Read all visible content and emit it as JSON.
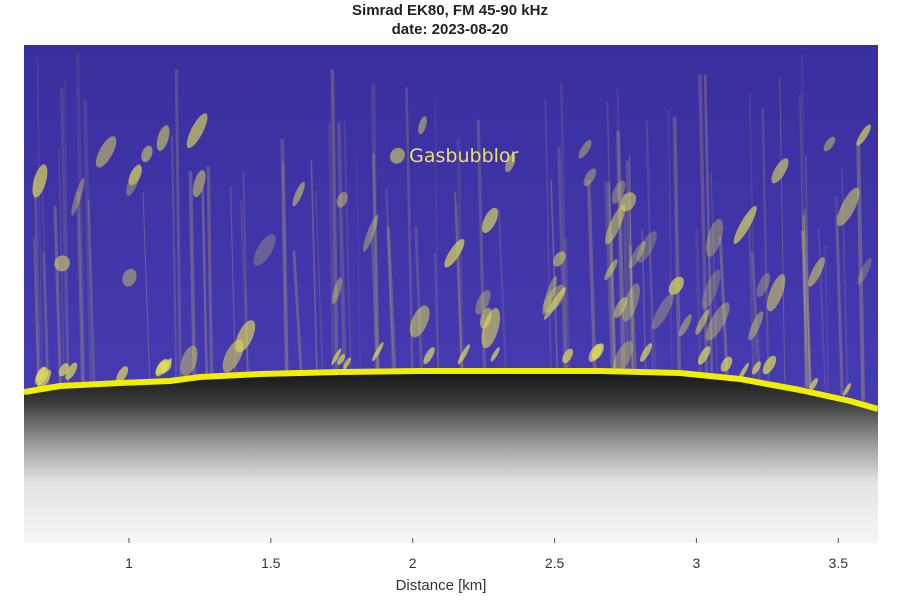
{
  "chart_data": {
    "type": "heatmap",
    "title": "Simrad EK80, FM 45-90 kHz",
    "subtitle": "date: 2023-08-20",
    "xlabel": "Distance [km]",
    "ylabel": "",
    "xlim": [
      0.63,
      3.64
    ],
    "x_ticks": [
      1,
      1.5,
      2,
      2.5,
      3,
      3.5
    ],
    "x_tick_labels": [
      "1",
      "1.5",
      "2",
      "2.5",
      "3",
      "3.5"
    ],
    "grid": false,
    "legend": "none",
    "annotations": [
      {
        "text": "Gasbubblor",
        "x": 2.18
      }
    ],
    "seabed_line_color": "#f2ee00",
    "water_color": "#3c34a8",
    "echo_color": "#e3de57",
    "sediment_colors": [
      "#1c1c1c",
      "#f4f4f4"
    ]
  }
}
